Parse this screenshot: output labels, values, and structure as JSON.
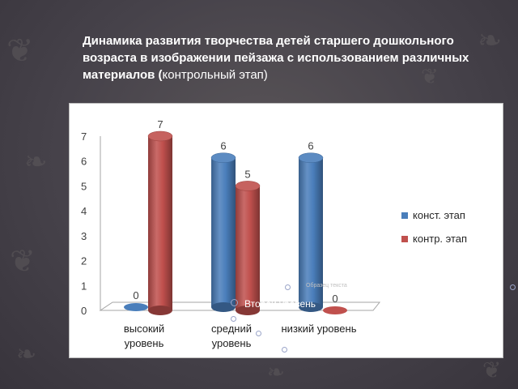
{
  "slide": {
    "title_bold": "Динамика развития творчества детей старшего дошкольного возраста в изображении пейзажа с использованием различных материалов (",
    "title_normal": "контрольный этап)"
  },
  "placeholder": {
    "small": "Образец текста",
    "big": "Второй уровень"
  },
  "colors": {
    "series1": "#4a7ebb",
    "series2": "#c0504d",
    "background": "#46424a"
  },
  "icons": [
    "leaf-icon",
    "bullet-circle-icon"
  ],
  "chart_data": {
    "type": "bar",
    "style": "3d-cylinder",
    "categories": [
      [
        "высокий",
        "уровень"
      ],
      [
        "средний",
        "уровень"
      ],
      [
        "низкий уровень"
      ]
    ],
    "series": [
      {
        "name": "конст. этап",
        "values": [
          0,
          6,
          6
        ],
        "color": "#4a7ebb"
      },
      {
        "name": "контр. этап",
        "values": [
          7,
          5,
          0
        ],
        "color": "#c0504d"
      }
    ],
    "yticks": [
      "0",
      "1",
      "2",
      "3",
      "4",
      "5",
      "6",
      "7"
    ],
    "ylim": [
      0,
      7
    ],
    "grid": false,
    "legend": "right"
  }
}
